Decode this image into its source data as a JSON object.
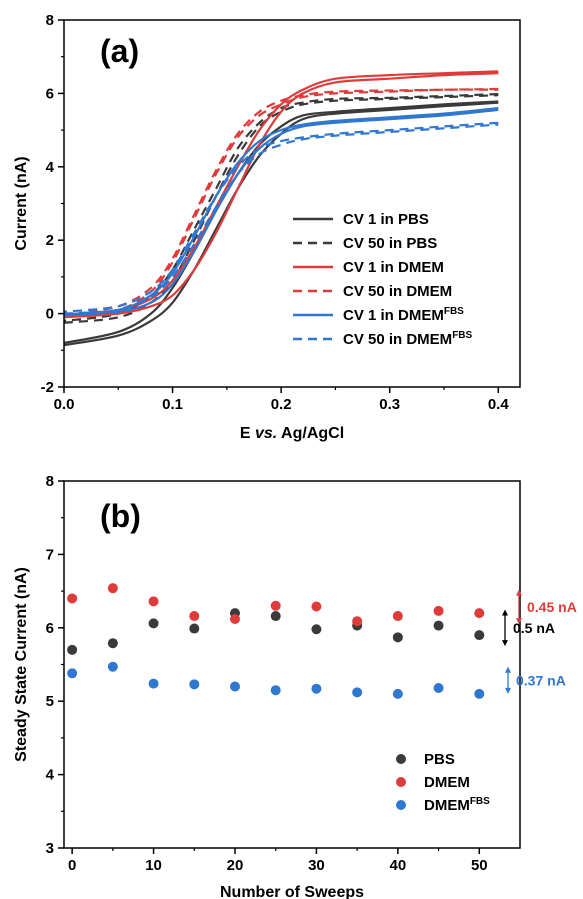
{
  "chart_data": [
    {
      "type": "line",
      "panel_label": "(a)",
      "xlabel": {
        "pre": "E ",
        "italic": "vs.",
        "post": " Ag/AgCl"
      },
      "ylabel": "Current (nA)",
      "xlim": [
        0.0,
        0.42
      ],
      "ylim": [
        -2,
        8
      ],
      "xticks": [
        0.0,
        0.1,
        0.2,
        0.3,
        0.4
      ],
      "xtick_labels": [
        "0.0",
        "0.1",
        "0.2",
        "0.3",
        "0.4"
      ],
      "yticks": [
        -2,
        0,
        2,
        4,
        6,
        8
      ],
      "ytick_labels": [
        "-2",
        "0",
        "2",
        "4",
        "6",
        "8"
      ],
      "legend_position": "lower-right",
      "series": [
        {
          "name": "CV 1 in PBS",
          "sup": "",
          "color": "#3a3a3a",
          "dashed": false,
          "forward": [
            [
              0.0,
              -0.86
            ],
            [
              0.05,
              -0.6
            ],
            [
              0.08,
              -0.2
            ],
            [
              0.1,
              0.3
            ],
            [
              0.12,
              1.2
            ],
            [
              0.14,
              2.3
            ],
            [
              0.16,
              3.4
            ],
            [
              0.18,
              4.3
            ],
            [
              0.2,
              4.9
            ],
            [
              0.22,
              5.3
            ],
            [
              0.25,
              5.45
            ],
            [
              0.3,
              5.55
            ],
            [
              0.35,
              5.65
            ],
            [
              0.4,
              5.75
            ]
          ],
          "reverse": [
            [
              0.4,
              5.78
            ],
            [
              0.35,
              5.7
            ],
            [
              0.3,
              5.6
            ],
            [
              0.25,
              5.5
            ],
            [
              0.22,
              5.4
            ],
            [
              0.2,
              5.1
            ],
            [
              0.18,
              4.6
            ],
            [
              0.16,
              3.8
            ],
            [
              0.14,
              2.8
            ],
            [
              0.12,
              1.7
            ],
            [
              0.1,
              0.7
            ],
            [
              0.08,
              0.0
            ],
            [
              0.05,
              -0.5
            ],
            [
              0.0,
              -0.8
            ]
          ]
        },
        {
          "name": "CV 50 in PBS",
          "sup": "",
          "color": "#3a3a3a",
          "dashed": true,
          "forward": [
            [
              0.0,
              -0.25
            ],
            [
              0.05,
              -0.1
            ],
            [
              0.08,
              0.3
            ],
            [
              0.1,
              0.9
            ],
            [
              0.12,
              2.0
            ],
            [
              0.14,
              3.2
            ],
            [
              0.16,
              4.3
            ],
            [
              0.18,
              5.1
            ],
            [
              0.2,
              5.5
            ],
            [
              0.22,
              5.7
            ],
            [
              0.25,
              5.8
            ],
            [
              0.3,
              5.85
            ],
            [
              0.35,
              5.9
            ],
            [
              0.4,
              5.95
            ]
          ],
          "reverse": [
            [
              0.4,
              5.98
            ],
            [
              0.35,
              5.93
            ],
            [
              0.3,
              5.88
            ],
            [
              0.25,
              5.85
            ],
            [
              0.22,
              5.75
            ],
            [
              0.2,
              5.6
            ],
            [
              0.18,
              5.2
            ],
            [
              0.16,
              4.5
            ],
            [
              0.14,
              3.4
            ],
            [
              0.12,
              2.3
            ],
            [
              0.1,
              1.2
            ],
            [
              0.08,
              0.5
            ],
            [
              0.05,
              0.0
            ],
            [
              0.0,
              -0.2
            ]
          ]
        },
        {
          "name": "CV 1 in DMEM",
          "sup": "",
          "color": "#e03b3b",
          "dashed": false,
          "forward": [
            [
              0.0,
              -0.1
            ],
            [
              0.05,
              0.0
            ],
            [
              0.08,
              0.2
            ],
            [
              0.1,
              0.5
            ],
            [
              0.12,
              1.2
            ],
            [
              0.14,
              2.2
            ],
            [
              0.16,
              3.4
            ],
            [
              0.18,
              4.6
            ],
            [
              0.2,
              5.5
            ],
            [
              0.22,
              6.0
            ],
            [
              0.25,
              6.3
            ],
            [
              0.3,
              6.4
            ],
            [
              0.35,
              6.5
            ],
            [
              0.4,
              6.55
            ]
          ],
          "reverse": [
            [
              0.4,
              6.6
            ],
            [
              0.35,
              6.55
            ],
            [
              0.3,
              6.5
            ],
            [
              0.25,
              6.4
            ],
            [
              0.22,
              6.1
            ],
            [
              0.2,
              5.7
            ],
            [
              0.18,
              5.0
            ],
            [
              0.16,
              4.0
            ],
            [
              0.14,
              2.9
            ],
            [
              0.12,
              1.8
            ],
            [
              0.1,
              0.9
            ],
            [
              0.08,
              0.4
            ],
            [
              0.05,
              0.1
            ],
            [
              0.0,
              -0.05
            ]
          ]
        },
        {
          "name": "CV 50 in DMEM",
          "sup": "",
          "color": "#e03b3b",
          "dashed": true,
          "forward": [
            [
              0.0,
              -0.1
            ],
            [
              0.05,
              0.1
            ],
            [
              0.08,
              0.6
            ],
            [
              0.1,
              1.4
            ],
            [
              0.12,
              2.6
            ],
            [
              0.14,
              3.8
            ],
            [
              0.16,
              4.8
            ],
            [
              0.18,
              5.4
            ],
            [
              0.2,
              5.7
            ],
            [
              0.22,
              5.9
            ],
            [
              0.25,
              6.0
            ],
            [
              0.3,
              6.05
            ],
            [
              0.35,
              6.1
            ],
            [
              0.4,
              6.1
            ]
          ],
          "reverse": [
            [
              0.4,
              6.12
            ],
            [
              0.35,
              6.1
            ],
            [
              0.3,
              6.08
            ],
            [
              0.25,
              6.05
            ],
            [
              0.22,
              5.95
            ],
            [
              0.2,
              5.8
            ],
            [
              0.18,
              5.5
            ],
            [
              0.16,
              4.9
            ],
            [
              0.14,
              3.9
            ],
            [
              0.12,
              2.7
            ],
            [
              0.1,
              1.5
            ],
            [
              0.08,
              0.7
            ],
            [
              0.05,
              0.2
            ],
            [
              0.0,
              -0.05
            ]
          ]
        },
        {
          "name": "CV 1 in DMEM",
          "sup": "FBS",
          "color": "#2f77d0",
          "dashed": false,
          "forward": [
            [
              0.0,
              -0.05
            ],
            [
              0.05,
              0.05
            ],
            [
              0.08,
              0.3
            ],
            [
              0.1,
              0.8
            ],
            [
              0.12,
              1.7
            ],
            [
              0.14,
              2.8
            ],
            [
              0.16,
              3.8
            ],
            [
              0.18,
              4.5
            ],
            [
              0.2,
              4.9
            ],
            [
              0.22,
              5.1
            ],
            [
              0.25,
              5.2
            ],
            [
              0.3,
              5.3
            ],
            [
              0.35,
              5.4
            ],
            [
              0.4,
              5.55
            ]
          ],
          "reverse": [
            [
              0.4,
              5.6
            ],
            [
              0.35,
              5.45
            ],
            [
              0.3,
              5.35
            ],
            [
              0.25,
              5.25
            ],
            [
              0.22,
              5.15
            ],
            [
              0.2,
              5.0
            ],
            [
              0.18,
              4.7
            ],
            [
              0.16,
              4.1
            ],
            [
              0.14,
              3.2
            ],
            [
              0.12,
              2.1
            ],
            [
              0.1,
              1.1
            ],
            [
              0.08,
              0.5
            ],
            [
              0.05,
              0.1
            ],
            [
              0.0,
              -0.02
            ]
          ]
        },
        {
          "name": "CV 50 in DMEM",
          "sup": "FBS",
          "color": "#2f77d0",
          "dashed": true,
          "forward": [
            [
              0.0,
              0.0
            ],
            [
              0.05,
              0.1
            ],
            [
              0.08,
              0.45
            ],
            [
              0.1,
              1.0
            ],
            [
              0.12,
              1.9
            ],
            [
              0.14,
              2.9
            ],
            [
              0.16,
              3.8
            ],
            [
              0.18,
              4.35
            ],
            [
              0.2,
              4.6
            ],
            [
              0.22,
              4.75
            ],
            [
              0.25,
              4.85
            ],
            [
              0.3,
              4.95
            ],
            [
              0.35,
              5.05
            ],
            [
              0.4,
              5.15
            ]
          ],
          "reverse": [
            [
              0.4,
              5.2
            ],
            [
              0.35,
              5.1
            ],
            [
              0.3,
              5.0
            ],
            [
              0.25,
              4.9
            ],
            [
              0.22,
              4.8
            ],
            [
              0.2,
              4.7
            ],
            [
              0.18,
              4.5
            ],
            [
              0.16,
              4.0
            ],
            [
              0.14,
              3.2
            ],
            [
              0.12,
              2.2
            ],
            [
              0.1,
              1.2
            ],
            [
              0.08,
              0.6
            ],
            [
              0.05,
              0.2
            ],
            [
              0.0,
              0.05
            ]
          ]
        }
      ]
    },
    {
      "type": "scatter",
      "panel_label": "(b)",
      "xlabel": "Number of Sweeps",
      "ylabel": "Steady State Current (nA)",
      "xlim": [
        -1,
        55
      ],
      "ylim": [
        3,
        8
      ],
      "xticks": [
        0,
        10,
        20,
        30,
        40,
        50
      ],
      "xtick_labels": [
        "0",
        "10",
        "20",
        "30",
        "40",
        "50"
      ],
      "yticks": [
        3,
        4,
        5,
        6,
        7,
        8
      ],
      "ytick_labels": [
        "3",
        "4",
        "5",
        "6",
        "7",
        "8"
      ],
      "legend_position": "lower-right",
      "x": [
        0,
        5,
        10,
        15,
        20,
        25,
        30,
        35,
        40,
        45,
        50
      ],
      "series": [
        {
          "name": "PBS",
          "sup": "",
          "color": "#3a3a3a",
          "values": [
            5.7,
            5.79,
            6.06,
            5.99,
            6.2,
            6.16,
            5.98,
            6.03,
            5.87,
            6.03,
            5.9
          ]
        },
        {
          "name": "DMEM",
          "sup": "",
          "color": "#e03b3b",
          "values": [
            6.4,
            6.54,
            6.36,
            6.16,
            6.12,
            6.3,
            6.29,
            6.09,
            6.16,
            6.23,
            6.2
          ]
        },
        {
          "name": "DMEM",
          "sup": "FBS",
          "color": "#2f77d0",
          "values": [
            5.38,
            5.47,
            5.24,
            5.23,
            5.2,
            5.15,
            5.17,
            5.12,
            5.1,
            5.18,
            5.1
          ]
        }
      ],
      "annotations": [
        {
          "text": "0.45 nA",
          "color": "#e03b3b",
          "range": [
            6.05,
            6.52
          ]
        },
        {
          "text": "0.5 nA",
          "color": "#000000",
          "range": [
            5.75,
            6.25
          ]
        },
        {
          "text": "0.37 nA",
          "color": "#2f77d0",
          "range": [
            5.1,
            5.47
          ]
        }
      ]
    }
  ]
}
